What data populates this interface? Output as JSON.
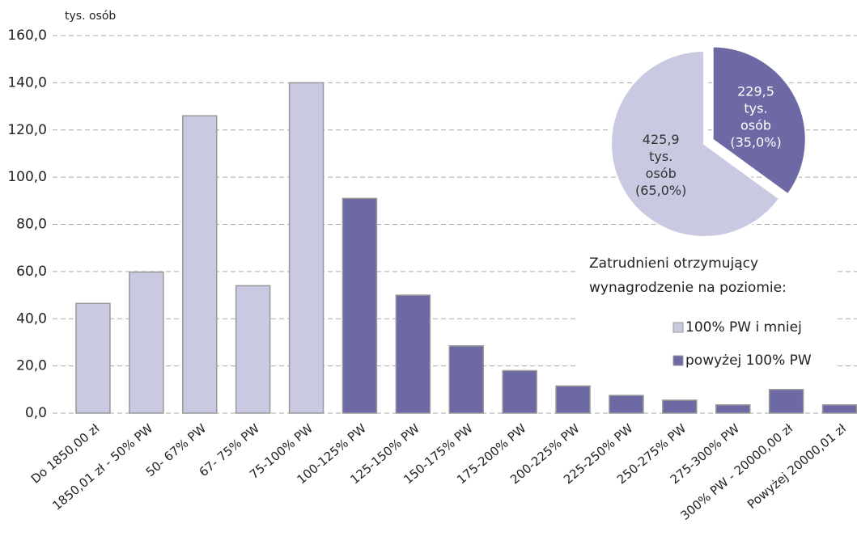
{
  "chart_data": [
    {
      "type": "bar",
      "y_label": "tys. osób",
      "categories": [
        "Do 1850,00 zł",
        "1850,01 zł - 50% PW",
        "50- 67% PW",
        "67- 75% PW",
        "75-100% PW",
        "100-125% PW",
        "125-150% PW",
        "150-175% PW",
        "175-200% PW",
        "200-225% PW",
        "225-250% PW",
        "250-275% PW",
        "275-300% PW",
        "300% PW - 20000,00 zł",
        "Powyżej 20000,01 zł"
      ],
      "series": [
        {
          "name": "100% PW i mniej",
          "color": "#c9c9e1",
          "values": [
            46.5,
            59.8,
            126,
            54,
            140,
            null,
            null,
            null,
            null,
            null,
            null,
            null,
            null,
            null,
            null
          ]
        },
        {
          "name": "powyżej 100% PW",
          "color": "#6c69a4",
          "values": [
            null,
            null,
            null,
            null,
            null,
            91,
            50,
            28.5,
            18,
            11.5,
            7.5,
            5.5,
            3.5,
            10,
            3.5
          ]
        }
      ],
      "ylim": [
        0,
        160
      ],
      "yticks": [
        {
          "value": 0,
          "label": "0,0"
        },
        {
          "value": 20,
          "label": "20,0"
        },
        {
          "value": 40,
          "label": "40,0"
        },
        {
          "value": 60,
          "label": "60,0"
        },
        {
          "value": 80,
          "label": "80,0"
        },
        {
          "value": 100,
          "label": "100,0"
        },
        {
          "value": 120,
          "label": "120,0"
        },
        {
          "value": 140,
          "label": "140,0"
        },
        {
          "value": 160,
          "label": "160,0"
        }
      ],
      "grid": true,
      "legend_title": [
        "Zatrudnieni otrzymujący",
        "wynagrodzenie na poziomie:"
      ]
    },
    {
      "type": "pie",
      "values": [
        425.9,
        229.5
      ],
      "value_labels": [
        [
          "425,9",
          "tys.",
          "osób",
          "(65,0%)"
        ],
        [
          "229,5",
          "tys.",
          "osób",
          "(35,0%)"
        ]
      ],
      "colors": [
        "#c9c9e1",
        "#6c69a4"
      ]
    }
  ]
}
